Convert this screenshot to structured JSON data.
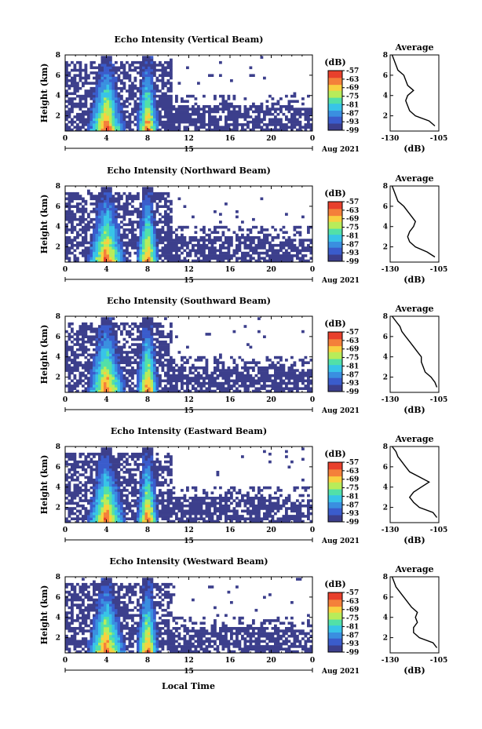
{
  "chart_data": {
    "type": "heatmap",
    "shared": {
      "xlabel": "Local Time",
      "x_ticks": [
        "0",
        "4",
        "8",
        "12",
        "16",
        "20",
        "0"
      ],
      "date_tick": "15",
      "date_label": "Aug 2021",
      "ylabel": "Height (km)",
      "y_ticks": [
        "2",
        "4",
        "6",
        "8"
      ],
      "ylim": [
        0.5,
        8
      ],
      "colorbar_unit": "(dB)",
      "colorbar_ticks": [
        "-57",
        "-63",
        "-69",
        "-75",
        "-81",
        "-87",
        "-93",
        "-99"
      ],
      "colorbar_range": [
        -99,
        -57
      ],
      "colors": [
        "#3c3f8c",
        "#3a5ccc",
        "#3a8fe0",
        "#38c4e8",
        "#52e0a8",
        "#b8ec5a",
        "#f8d040",
        "#f4803a",
        "#e8402c"
      ],
      "profile_title": "Average",
      "profile_xlabel": "(dB)",
      "profile_x_ticks": [
        "-130",
        "-105"
      ],
      "profile_xlim": [
        -130,
        -105
      ],
      "profile_y_ticks": [
        "2",
        "4",
        "6",
        "8"
      ]
    },
    "panels": [
      {
        "title": "Echo Intensity (Vertical Beam)",
        "profile": {
          "height": [
            1.0,
            1.5,
            2.0,
            2.5,
            3.0,
            3.5,
            4.0,
            4.5,
            5.0,
            5.5,
            6.0,
            6.5,
            7.0,
            7.5,
            8.0
          ],
          "db": [
            -107,
            -110,
            -117,
            -120,
            -121,
            -122,
            -121,
            -118,
            -121,
            -122,
            -123,
            -126,
            -127,
            -128,
            -129
          ]
        }
      },
      {
        "title": "Echo Intensity (Northward Beam)",
        "profile": {
          "height": [
            1.0,
            1.5,
            2.0,
            2.5,
            3.0,
            3.5,
            4.0,
            4.5,
            5.0,
            5.5,
            6.0,
            6.5,
            7.0,
            7.5,
            8.0
          ],
          "db": [
            -107,
            -111,
            -117,
            -120,
            -121,
            -120,
            -118,
            -117,
            -119,
            -121,
            -123,
            -126,
            -127,
            -128,
            -129
          ]
        }
      },
      {
        "title": "Echo Intensity (Southward Beam)",
        "profile": {
          "height": [
            1.0,
            1.5,
            2.0,
            2.5,
            3.0,
            3.5,
            4.0,
            4.5,
            5.0,
            5.5,
            6.0,
            6.5,
            7.0,
            7.5,
            8.0
          ],
          "db": [
            -106,
            -107,
            -109,
            -112,
            -113,
            -114,
            -114,
            -116,
            -118,
            -120,
            -122,
            -124,
            -125,
            -127,
            -129
          ]
        }
      },
      {
        "title": "Echo Intensity (Eastward Beam)",
        "profile": {
          "height": [
            1.0,
            1.5,
            2.0,
            2.5,
            3.0,
            3.5,
            4.0,
            4.5,
            5.0,
            5.5,
            6.0,
            6.5,
            7.0,
            7.5,
            8.0
          ],
          "db": [
            -106,
            -108,
            -115,
            -118,
            -120,
            -118,
            -114,
            -110,
            -115,
            -120,
            -122,
            -124,
            -126,
            -127,
            -129
          ]
        }
      },
      {
        "title": "Echo Intensity (Westward Beam)",
        "profile": {
          "height": [
            1.0,
            1.5,
            2.0,
            2.5,
            3.0,
            3.5,
            4.0,
            4.5,
            5.0,
            5.5,
            6.0,
            6.5,
            7.0,
            7.5,
            8.0
          ],
          "db": [
            -106,
            -108,
            -115,
            -118,
            -118,
            -116,
            -117,
            -116,
            -119,
            -121,
            -123,
            -125,
            -127,
            -128,
            -129
          ]
        }
      }
    ]
  }
}
